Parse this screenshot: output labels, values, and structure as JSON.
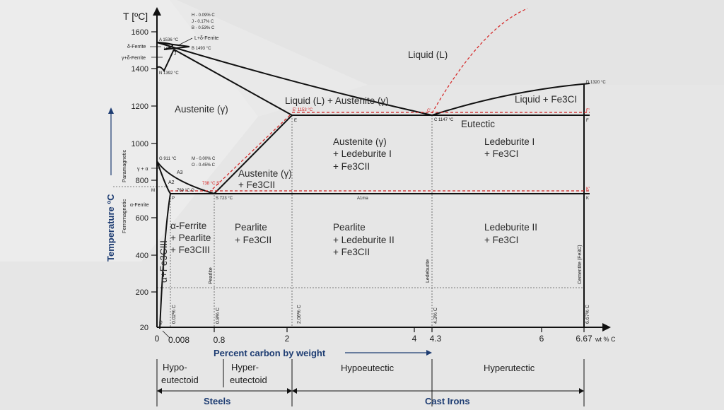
{
  "colors": {
    "axis": "#111111",
    "accent_blue": "#1d3c72",
    "dashed_red": "#d42020",
    "background": "#e9e9e9"
  },
  "axes": {
    "y_title": "T [ºC]",
    "y_ticks": [
      "1600",
      "1400",
      "1200",
      "1000",
      "800",
      "600",
      "400",
      "200",
      "20"
    ],
    "x_ticks": [
      "0",
      "0.008",
      "0.8",
      "2",
      "4",
      "4.3",
      "6",
      "6.67"
    ],
    "x_unit": "wt % C",
    "x_title": "Percent carbon by weight",
    "y_label": "Temperature ºC",
    "ferromagnetic": "Ferromagnetic",
    "paramagnetic": "Paramagnetic"
  },
  "legend_compositions": [
    "H - 0.09%  C",
    "J  - 0.17%  C",
    "B - 0.53%  C"
  ],
  "legend_compositions_2": [
    "M - 0.00%  C",
    "O - 0.45%  C"
  ],
  "points": {
    "A": "A 1536 °C",
    "B": "B 1493 °C",
    "H": "H",
    "J": "J",
    "N": "N 1392 °C",
    "D": "D 1320 °C",
    "C": "C 1147 °C",
    "C_red": "C'",
    "E": "E",
    "E_red": "E' 1153 °C",
    "F": "F",
    "F_red": "F'",
    "G": "G 911 °C",
    "M": "M",
    "O": "769 °C O",
    "S": "S 723 °C",
    "S_red": "738 °C S'",
    "P": "P",
    "K": "K",
    "K_red": "K'",
    "Q": "Q",
    "A1": "A1ma"
  },
  "phases": {
    "delta_ferrite": "δ-Ferrite",
    "gamma_delta": "γ+δ-Ferrite",
    "l_delta": "L+δ-Ferrite",
    "liquid": "Liquid (L)",
    "austenite": "Austenite (γ)",
    "liquid_austenite": "Liquid (L) + Austenite (γ)",
    "liquid_fe3c": "Liquid + Fe3CI",
    "eutectic": "Eutectic",
    "gamma_alpha": "γ + α",
    "a3": "A3",
    "a2": "A2",
    "alpha_ferrite": "α-Ferrite",
    "austenite_fe3c_1": "Austenite (γ)",
    "austenite_fe3c_2": "+ Fe3CII",
    "aus_led_1": "Austenite (γ)",
    "aus_led_2": "+ Ledeburite I",
    "aus_led_3": "+ Fe3CII",
    "led1_1": "Ledeburite I",
    "led1_2": "+ Fe3CI",
    "af_1": "α-Ferrite",
    "af_2": "+ Pearlite",
    "af_3": "+ Fe3CIII",
    "alpha_fe3c": "α+Fe3CIII",
    "pearlite_1": "Pearlite",
    "pearlite_2": "+ Fe3CII",
    "pl_1": "Pearlite",
    "pl_2": "+ Ledeburite II",
    "pl_3": "+ Fe3CII",
    "led2_1": "Ledeburite II",
    "led2_2": "+ Fe3CI"
  },
  "vertical_labels": {
    "pearlite": "Pearlite",
    "ledeburite": "Ledeburite",
    "cementite": "Cementite (Fe3C)",
    "c002": "0.02% C",
    "c08": "0.8% C",
    "c206": "2.06% C",
    "c43": "4.3% C",
    "c667": "6.67% C"
  },
  "categories": {
    "hypo": [
      "Hypo-",
      "eutectoid"
    ],
    "hyper": [
      "Hyper-",
      "eutectoid"
    ],
    "hypoeutectic": "Hypoeutectic",
    "hyperutectic": "Hyperutectic",
    "steels": "Steels",
    "cast_irons": "Cast Irons"
  }
}
